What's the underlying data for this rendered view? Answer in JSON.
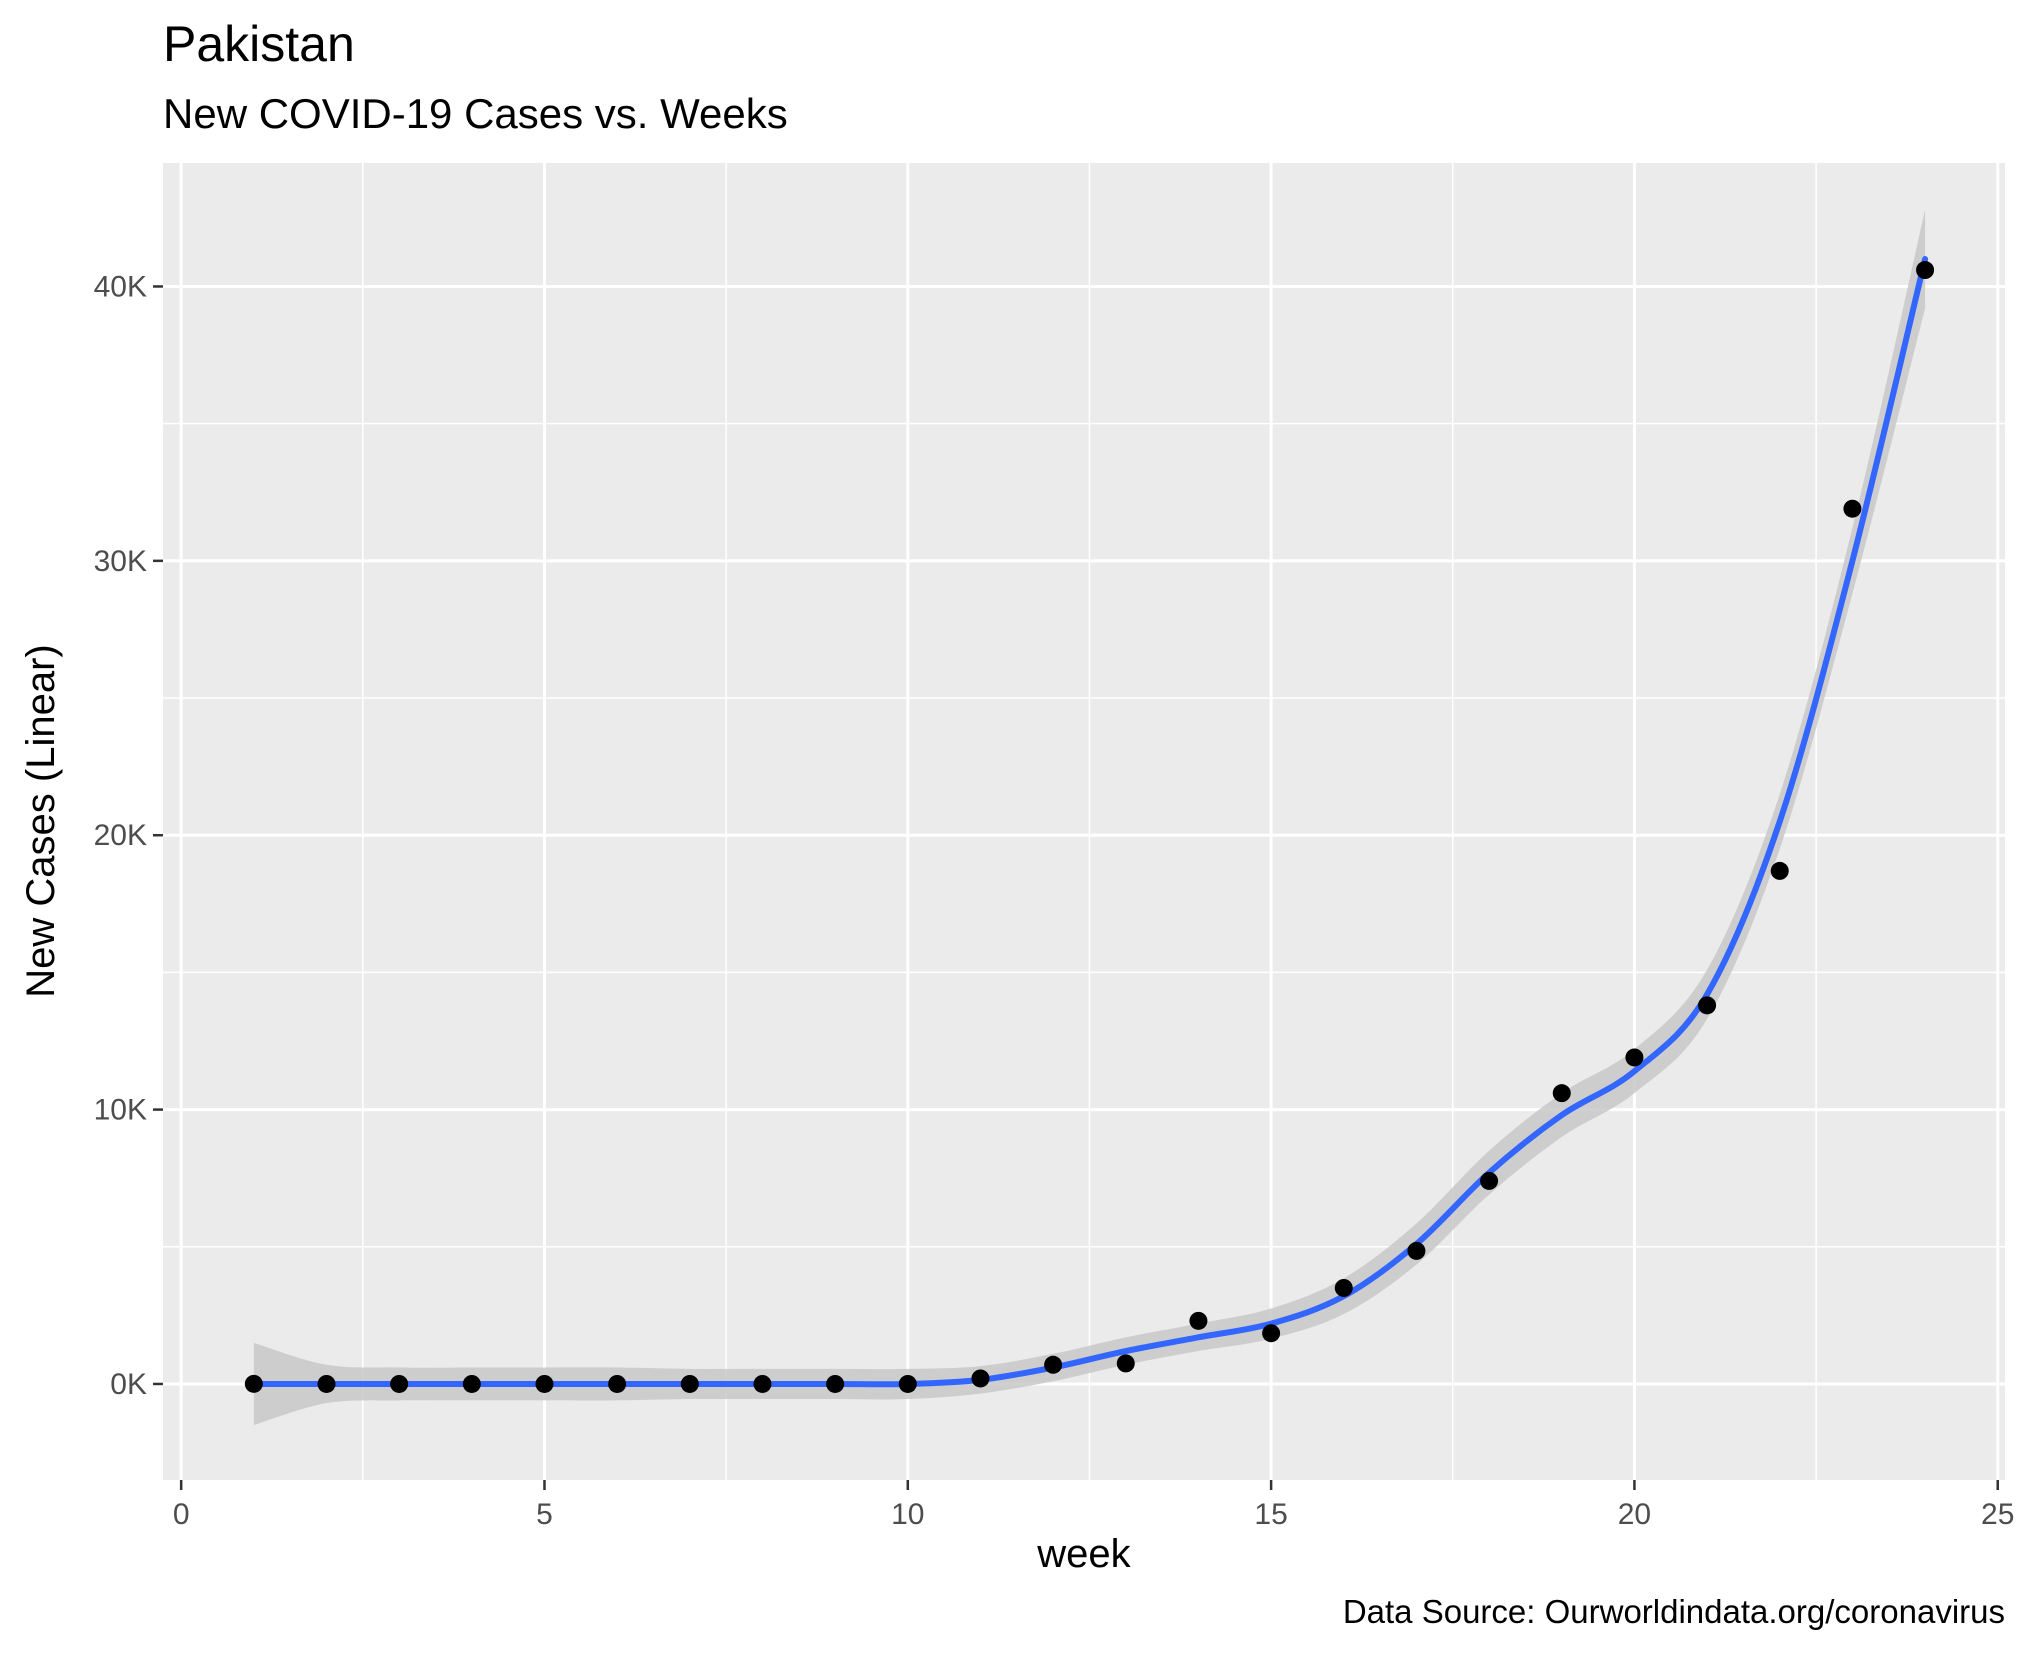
{
  "title": "Pakistan",
  "subtitle": "New COVID-19 Cases vs. Weeks",
  "caption": "Data Source: Ourworldindata.org/coronavirus",
  "chart_data": {
    "type": "scatter",
    "title": "Pakistan",
    "subtitle": "New COVID-19 Cases vs. Weeks",
    "xlabel": "week",
    "ylabel": "New Cases (Linear)",
    "xlim": [
      -0.25,
      25.1
    ],
    "ylim": [
      -3500,
      44500
    ],
    "x_ticks": [
      0,
      5,
      10,
      15,
      20,
      25
    ],
    "x_tick_labels": [
      "0",
      "5",
      "10",
      "15",
      "20",
      "25"
    ],
    "y_ticks": [
      0,
      10000,
      20000,
      30000,
      40000
    ],
    "y_tick_labels": [
      "0K",
      "10K",
      "20K",
      "30K",
      "40K"
    ],
    "grid": true,
    "points": {
      "x": [
        1,
        2,
        3,
        4,
        5,
        6,
        7,
        8,
        9,
        10,
        11,
        12,
        13,
        14,
        15,
        16,
        17,
        18,
        19,
        20,
        21,
        22,
        23,
        24
      ],
      "y": [
        4,
        0,
        0,
        0,
        0,
        0,
        0,
        0,
        0,
        0,
        200,
        700,
        750,
        2300,
        1850,
        3500,
        4850,
        7400,
        10600,
        11900,
        13800,
        18700,
        31900,
        40600
      ]
    },
    "smooth": {
      "x": [
        1,
        2,
        3,
        4,
        5,
        6,
        7,
        8,
        9,
        10,
        11,
        12,
        13,
        14,
        15,
        16,
        17,
        18,
        19,
        20,
        21,
        22,
        23,
        24
      ],
      "y": [
        0,
        0,
        0,
        0,
        0,
        0,
        0,
        0,
        0,
        0,
        150,
        600,
        1200,
        1700,
        2200,
        3200,
        5100,
        7700,
        9800,
        11400,
        14200,
        20500,
        30000,
        41000
      ],
      "band_halfwidth": [
        1500,
        700,
        600,
        600,
        600,
        600,
        550,
        550,
        550,
        550,
        500,
        500,
        500,
        500,
        550,
        650,
        750,
        800,
        800,
        800,
        900,
        1000,
        1200,
        1800
      ]
    },
    "colors": {
      "panel": "#ebebeb",
      "grid": "#ffffff",
      "line": "#3366ff",
      "band": "#c8c8c8",
      "point": "#000000"
    }
  }
}
